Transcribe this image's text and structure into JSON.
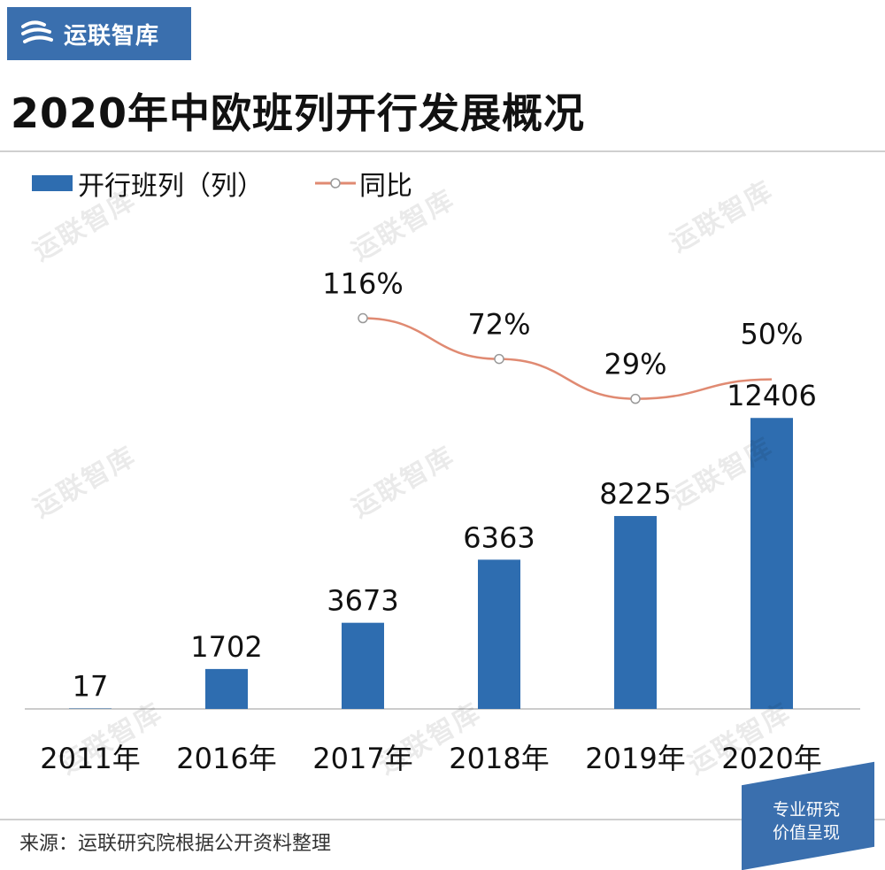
{
  "brand": {
    "name": "运联智库"
  },
  "title": "2020年中欧班列开行发展概况",
  "watermark": "运联智库",
  "source_note": "来源：运联研究院根据公开资料整理",
  "corner_badge": {
    "line1": "专业研究",
    "line2": "价值呈现"
  },
  "colors": {
    "bar": "#2e6db0",
    "line": "#e08a72",
    "brand": "#3a6fae"
  },
  "chart_data": {
    "type": "bar",
    "categories": [
      "2011年",
      "2016年",
      "2017年",
      "2018年",
      "2019年",
      "2020年"
    ],
    "series": [
      {
        "name": "开行班列（列）",
        "kind": "bar",
        "values": [
          17,
          1702,
          3673,
          6363,
          8225,
          12406
        ],
        "labels": [
          "17",
          "1702",
          "3673",
          "6363",
          "8225",
          "12406"
        ]
      },
      {
        "name": "同比",
        "kind": "line",
        "axis": "secondary",
        "values": [
          null,
          null,
          116,
          72,
          29,
          50
        ],
        "labels": [
          "",
          "",
          "116%",
          "72%",
          "29%",
          "50%"
        ]
      }
    ],
    "legend_position": "top-left",
    "grid": false
  }
}
